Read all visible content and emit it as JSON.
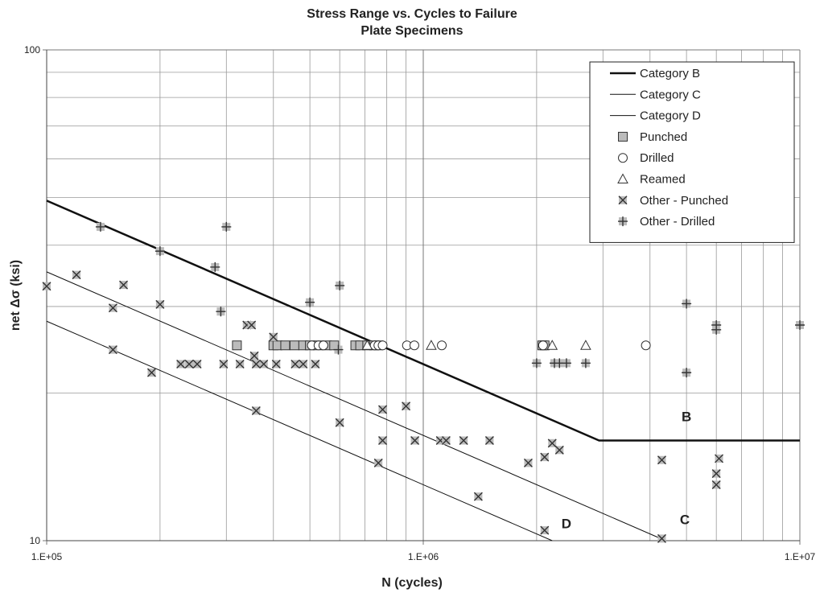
{
  "chart_data": {
    "type": "scatter",
    "title": "Stress Range vs. Cycles to Failure",
    "subtitle": "Plate Specimens",
    "x_label": "N (cycles)",
    "y_label": "net Δσ (ksi)",
    "xscale": "log",
    "yscale": "log",
    "grid": true,
    "legend": "upper right",
    "xlim": [
      100000,
      10000000
    ],
    "ylim": [
      10,
      100
    ],
    "xticks": [
      {
        "value": 100000,
        "label": "1.E+05"
      },
      {
        "value": 1000000,
        "label": "1.E+06"
      },
      {
        "value": 10000000,
        "label": "1.E+07"
      }
    ],
    "yticks": [
      10,
      100
    ],
    "xminor": [
      200000,
      300000,
      400000,
      500000,
      600000,
      700000,
      800000,
      900000,
      2000000,
      3000000,
      4000000,
      5000000,
      6000000,
      7000000,
      8000000,
      9000000
    ],
    "yminor": [
      20,
      30,
      40,
      50,
      60,
      70,
      80,
      90
    ],
    "annotations": [
      {
        "text": "B",
        "x": 5000000,
        "y": 17.5
      },
      {
        "text": "C",
        "x": 4950000,
        "y": 10.8
      },
      {
        "text": "D",
        "x": 2400000,
        "y": 10.6
      }
    ],
    "series": [
      {
        "name": "Category B",
        "style": "line",
        "width": 2.5,
        "color": "#111",
        "x": [
          100000,
          2930000,
          10000000
        ],
        "y": [
          49.3,
          16,
          16
        ]
      },
      {
        "name": "Category C",
        "style": "line",
        "width": 1,
        "color": "#111",
        "x": [
          100000,
          4400000
        ],
        "y": [
          35.3,
          10
        ]
      },
      {
        "name": "Category D",
        "style": "line",
        "width": 1,
        "color": "#111",
        "x": [
          100000,
          2200000
        ],
        "y": [
          28,
          10
        ]
      },
      {
        "name": "Punched",
        "style": "square",
        "color": "#bbbbbb",
        "x": [
          320000,
          400000,
          410000,
          430000,
          455000,
          480000,
          500000,
          525000,
          555000,
          580000,
          660000,
          680000,
          710000,
          740000,
          760000,
          2070000,
          2100000
        ],
        "y": [
          25,
          25,
          25,
          25,
          25,
          25,
          25,
          25,
          25,
          25,
          25,
          25,
          25,
          25,
          25,
          25,
          25
        ]
      },
      {
        "name": "Drilled",
        "style": "circle",
        "color": "#ffffff",
        "x": [
          506000,
          527000,
          543000,
          743000,
          760000,
          780000,
          905000,
          947000,
          1120000,
          2080000,
          3900000
        ],
        "y": [
          25,
          25,
          25,
          25,
          25,
          25,
          25,
          25,
          25,
          25,
          25
        ]
      },
      {
        "name": "Reamed",
        "style": "triangle",
        "color": "#ffffff",
        "x": [
          710000,
          1050000,
          2200000,
          2700000
        ],
        "y": [
          25,
          25,
          25,
          25
        ]
      },
      {
        "name": "Other - Punched",
        "style": "x",
        "color": "#bbbbbb",
        "x": [
          100000,
          120000,
          160000,
          150000,
          200000,
          150000,
          190000,
          227000,
          239000,
          251000,
          295000,
          326000,
          340000,
          350000,
          356000,
          360000,
          377000,
          400000,
          407000,
          360000,
          457000,
          480000,
          517000,
          600000,
          780000,
          780000,
          760000,
          900000,
          950000,
          1110000,
          1150000,
          1280000,
          1500000,
          1400000,
          1900000,
          2100000,
          2200000,
          2300000,
          2100000,
          4300000,
          4300000,
          6000000,
          6000000,
          6100000
        ],
        "y": [
          33,
          34.8,
          33.2,
          29.8,
          30.3,
          24.5,
          22,
          22.9,
          22.9,
          22.9,
          22.9,
          22.9,
          27.5,
          27.5,
          23.8,
          22.9,
          22.9,
          26,
          22.9,
          18.4,
          22.9,
          22.9,
          22.9,
          17.4,
          18.5,
          16,
          14.4,
          18.8,
          16,
          16,
          16,
          16,
          16,
          12.3,
          14.4,
          14.8,
          15.8,
          15.3,
          10.5,
          14.6,
          10.1,
          13.7,
          13,
          14.7
        ]
      },
      {
        "name": "Other - Drilled",
        "style": "plus",
        "color": "#bbbbbb",
        "x": [
          139000,
          200000,
          300000,
          280000,
          290000,
          500000,
          600000,
          595000,
          2000000,
          2230000,
          2300000,
          2400000,
          2700000,
          5000000,
          5000000,
          6000000,
          6000000,
          10000000
        ],
        "y": [
          43.6,
          38.9,
          43.6,
          36.1,
          29.3,
          30.6,
          33.1,
          24.5,
          23,
          23,
          23,
          23,
          23,
          30.4,
          22,
          27.5,
          26.9,
          27.5
        ]
      }
    ]
  }
}
